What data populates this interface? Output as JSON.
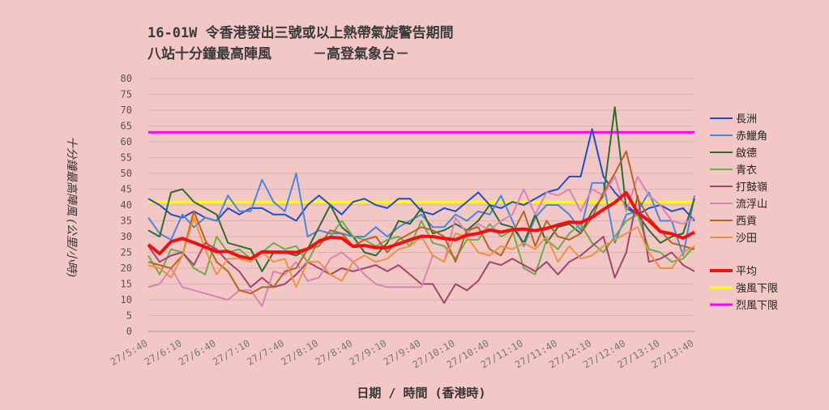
{
  "chart_data": {
    "type": "line",
    "title": "16-01W 令香港發出三號或以上熱帶氣旋警告期間",
    "subtitle": "八站十分鐘最高陣風　　　－高登氣象台－",
    "xlabel": "日期 / 時間 (香港時)",
    "ylabel": "十分鐘最高陣風 (公里/小時)",
    "ylim": [
      0,
      80
    ],
    "yticks": [
      0,
      5,
      10,
      15,
      20,
      25,
      30,
      35,
      40,
      45,
      50,
      55,
      60,
      65,
      70,
      75,
      80
    ],
    "grid": true,
    "legend_position": "right",
    "xtick_labels": [
      "27/5:40",
      "27/6:10",
      "27/6:40",
      "27/7:10",
      "27/7:40",
      "27/8:10",
      "27/8:40",
      "27/9:10",
      "27/9:40",
      "27/10:10",
      "27/10:40",
      "27/11:10",
      "27/11:40",
      "27/12:10",
      "27/12:40",
      "27/13:10",
      "27/13:40"
    ],
    "x": [
      "27/5:40",
      "27/5:50",
      "27/6:00",
      "27/6:10",
      "27/6:20",
      "27/6:30",
      "27/6:40",
      "27/6:50",
      "27/7:00",
      "27/7:10",
      "27/7:20",
      "27/7:30",
      "27/7:40",
      "27/7:50",
      "27/8:00",
      "27/8:10",
      "27/8:20",
      "27/8:30",
      "27/8:40",
      "27/8:50",
      "27/9:00",
      "27/9:10",
      "27/9:20",
      "27/9:30",
      "27/9:40",
      "27/9:50",
      "27/10:00",
      "27/10:10",
      "27/10:20",
      "27/10:30",
      "27/10:40",
      "27/10:50",
      "27/11:00",
      "27/11:10",
      "27/11:20",
      "27/11:30",
      "27/11:40",
      "27/11:50",
      "27/12:00",
      "27/12:10",
      "27/12:20",
      "27/12:30",
      "27/12:40",
      "27/12:50",
      "27/13:00",
      "27/13:10",
      "27/13:20",
      "27/13:30",
      "27/13:40"
    ],
    "series": [
      {
        "name": "長洲",
        "color": "#1f4fc6",
        "width": 2,
        "values": [
          42,
          40,
          37,
          36,
          38,
          36,
          35,
          39,
          37,
          39,
          39,
          37,
          37,
          35,
          40,
          43,
          40,
          37,
          41,
          42,
          40,
          39,
          42,
          42,
          38,
          37,
          39,
          38,
          41,
          44,
          40,
          39,
          41,
          40,
          42,
          44,
          45,
          49,
          49,
          64,
          49,
          44,
          40,
          37,
          39,
          40,
          38,
          39,
          35
        ]
      },
      {
        "name": "赤鱲角",
        "color": "#4a86d8",
        "width": 2,
        "values": [
          36,
          31,
          29,
          37,
          33,
          36,
          35,
          43,
          38,
          38,
          48,
          41,
          38,
          50,
          30,
          32,
          31,
          31,
          30,
          30,
          33,
          30,
          33,
          35,
          37,
          33,
          33,
          37,
          35,
          38,
          37,
          43,
          35,
          27,
          36,
          40,
          40,
          37,
          32,
          47,
          47,
          28,
          37,
          38,
          44,
          35,
          35,
          24,
          43
        ]
      },
      {
        "name": "啟德",
        "color": "#2e6b2e",
        "width": 2,
        "values": [
          32,
          30,
          44,
          45,
          41,
          39,
          37,
          28,
          27,
          26,
          19,
          25,
          25,
          24,
          26,
          33,
          40,
          33,
          30,
          25,
          24,
          28,
          35,
          34,
          39,
          31,
          32,
          34,
          32,
          35,
          40,
          34,
          33,
          28,
          37,
          28,
          33,
          34,
          31,
          38,
          43,
          71,
          39,
          37,
          32,
          28,
          30,
          31,
          42
        ]
      },
      {
        "name": "青衣",
        "color": "#6aae4c",
        "width": 2,
        "values": [
          24,
          18,
          26,
          25,
          20,
          18,
          30,
          25,
          26,
          23,
          25,
          28,
          26,
          27,
          22,
          29,
          30,
          35,
          30,
          29,
          27,
          29,
          30,
          27,
          35,
          28,
          27,
          23,
          29,
          29,
          34,
          30,
          32,
          20,
          18,
          29,
          26,
          31,
          34,
          28,
          25,
          30,
          35,
          37,
          26,
          25,
          22,
          23,
          27
        ]
      },
      {
        "name": "打鼓嶺",
        "color": "#a0456f",
        "width": 2,
        "values": [
          27,
          22,
          24,
          25,
          21,
          28,
          26,
          22,
          19,
          14,
          17,
          14,
          15,
          18,
          22,
          20,
          18,
          20,
          19,
          20,
          21,
          19,
          21,
          18,
          15,
          15,
          9,
          15,
          13,
          16,
          22,
          21,
          23,
          21,
          19,
          22,
          18,
          22,
          24,
          27,
          30,
          17,
          25,
          43,
          22,
          23,
          25,
          21,
          19
        ]
      },
      {
        "name": "流浮山",
        "color": "#d685b5",
        "width": 2,
        "values": [
          14,
          15,
          20,
          14,
          13,
          12,
          11,
          10,
          13,
          13,
          8,
          19,
          18,
          22,
          16,
          17,
          23,
          25,
          22,
          18,
          15,
          14,
          14,
          14,
          14,
          24,
          22,
          36,
          31,
          34,
          32,
          35,
          37,
          45,
          37,
          44,
          43,
          45,
          38,
          45,
          43,
          49,
          38,
          49,
          43,
          40,
          35,
          34,
          36
        ]
      },
      {
        "name": "西貢",
        "color": "#b5651d",
        "width": 2,
        "values": [
          22,
          21,
          20,
          24,
          38,
          29,
          22,
          19,
          13,
          12,
          14,
          14,
          19,
          20,
          26,
          27,
          32,
          31,
          27,
          29,
          30,
          25,
          29,
          31,
          33,
          32,
          30,
          22,
          32,
          33,
          26,
          24,
          31,
          38,
          27,
          35,
          30,
          29,
          31,
          36,
          44,
          50,
          57,
          42,
          36,
          32,
          28,
          27,
          26
        ]
      },
      {
        "name": "沙田",
        "color": "#e89440",
        "width": 2,
        "values": [
          21,
          20,
          17,
          24,
          36,
          26,
          18,
          23,
          23,
          22,
          25,
          22,
          23,
          14,
          22,
          22,
          18,
          16,
          22,
          24,
          22,
          23,
          26,
          27,
          30,
          24,
          22,
          31,
          30,
          25,
          24,
          27,
          26,
          28,
          26,
          30,
          22,
          27,
          23,
          24,
          27,
          29,
          31,
          33,
          25,
          20,
          20,
          25,
          27
        ]
      },
      {
        "name": "平均",
        "color": "#ee1111",
        "width": 4,
        "values": [
          27.5,
          24.6,
          28.4,
          29.4,
          28.1,
          26.7,
          25.2,
          25.3,
          23.8,
          23,
          25.2,
          25.1,
          25.1,
          25,
          26.1,
          28.5,
          29.8,
          29.5,
          26.9,
          27.2,
          26.5,
          26.5,
          27.7,
          29,
          30.1,
          30,
          29.4,
          29,
          30.5,
          31,
          32.1,
          31.4,
          32.2,
          32.4,
          31.9,
          32.6,
          33.7,
          34.6,
          34.4,
          36.1,
          38.6,
          40.8,
          43.9,
          37.6,
          35,
          31.6,
          30.9,
          29.5,
          31.4
        ]
      }
    ],
    "reference_lines": [
      {
        "name": "強風下限",
        "value": 41,
        "color": "#ffff00"
      },
      {
        "name": "烈風下限",
        "value": 63,
        "color": "#ff00ff"
      }
    ]
  }
}
